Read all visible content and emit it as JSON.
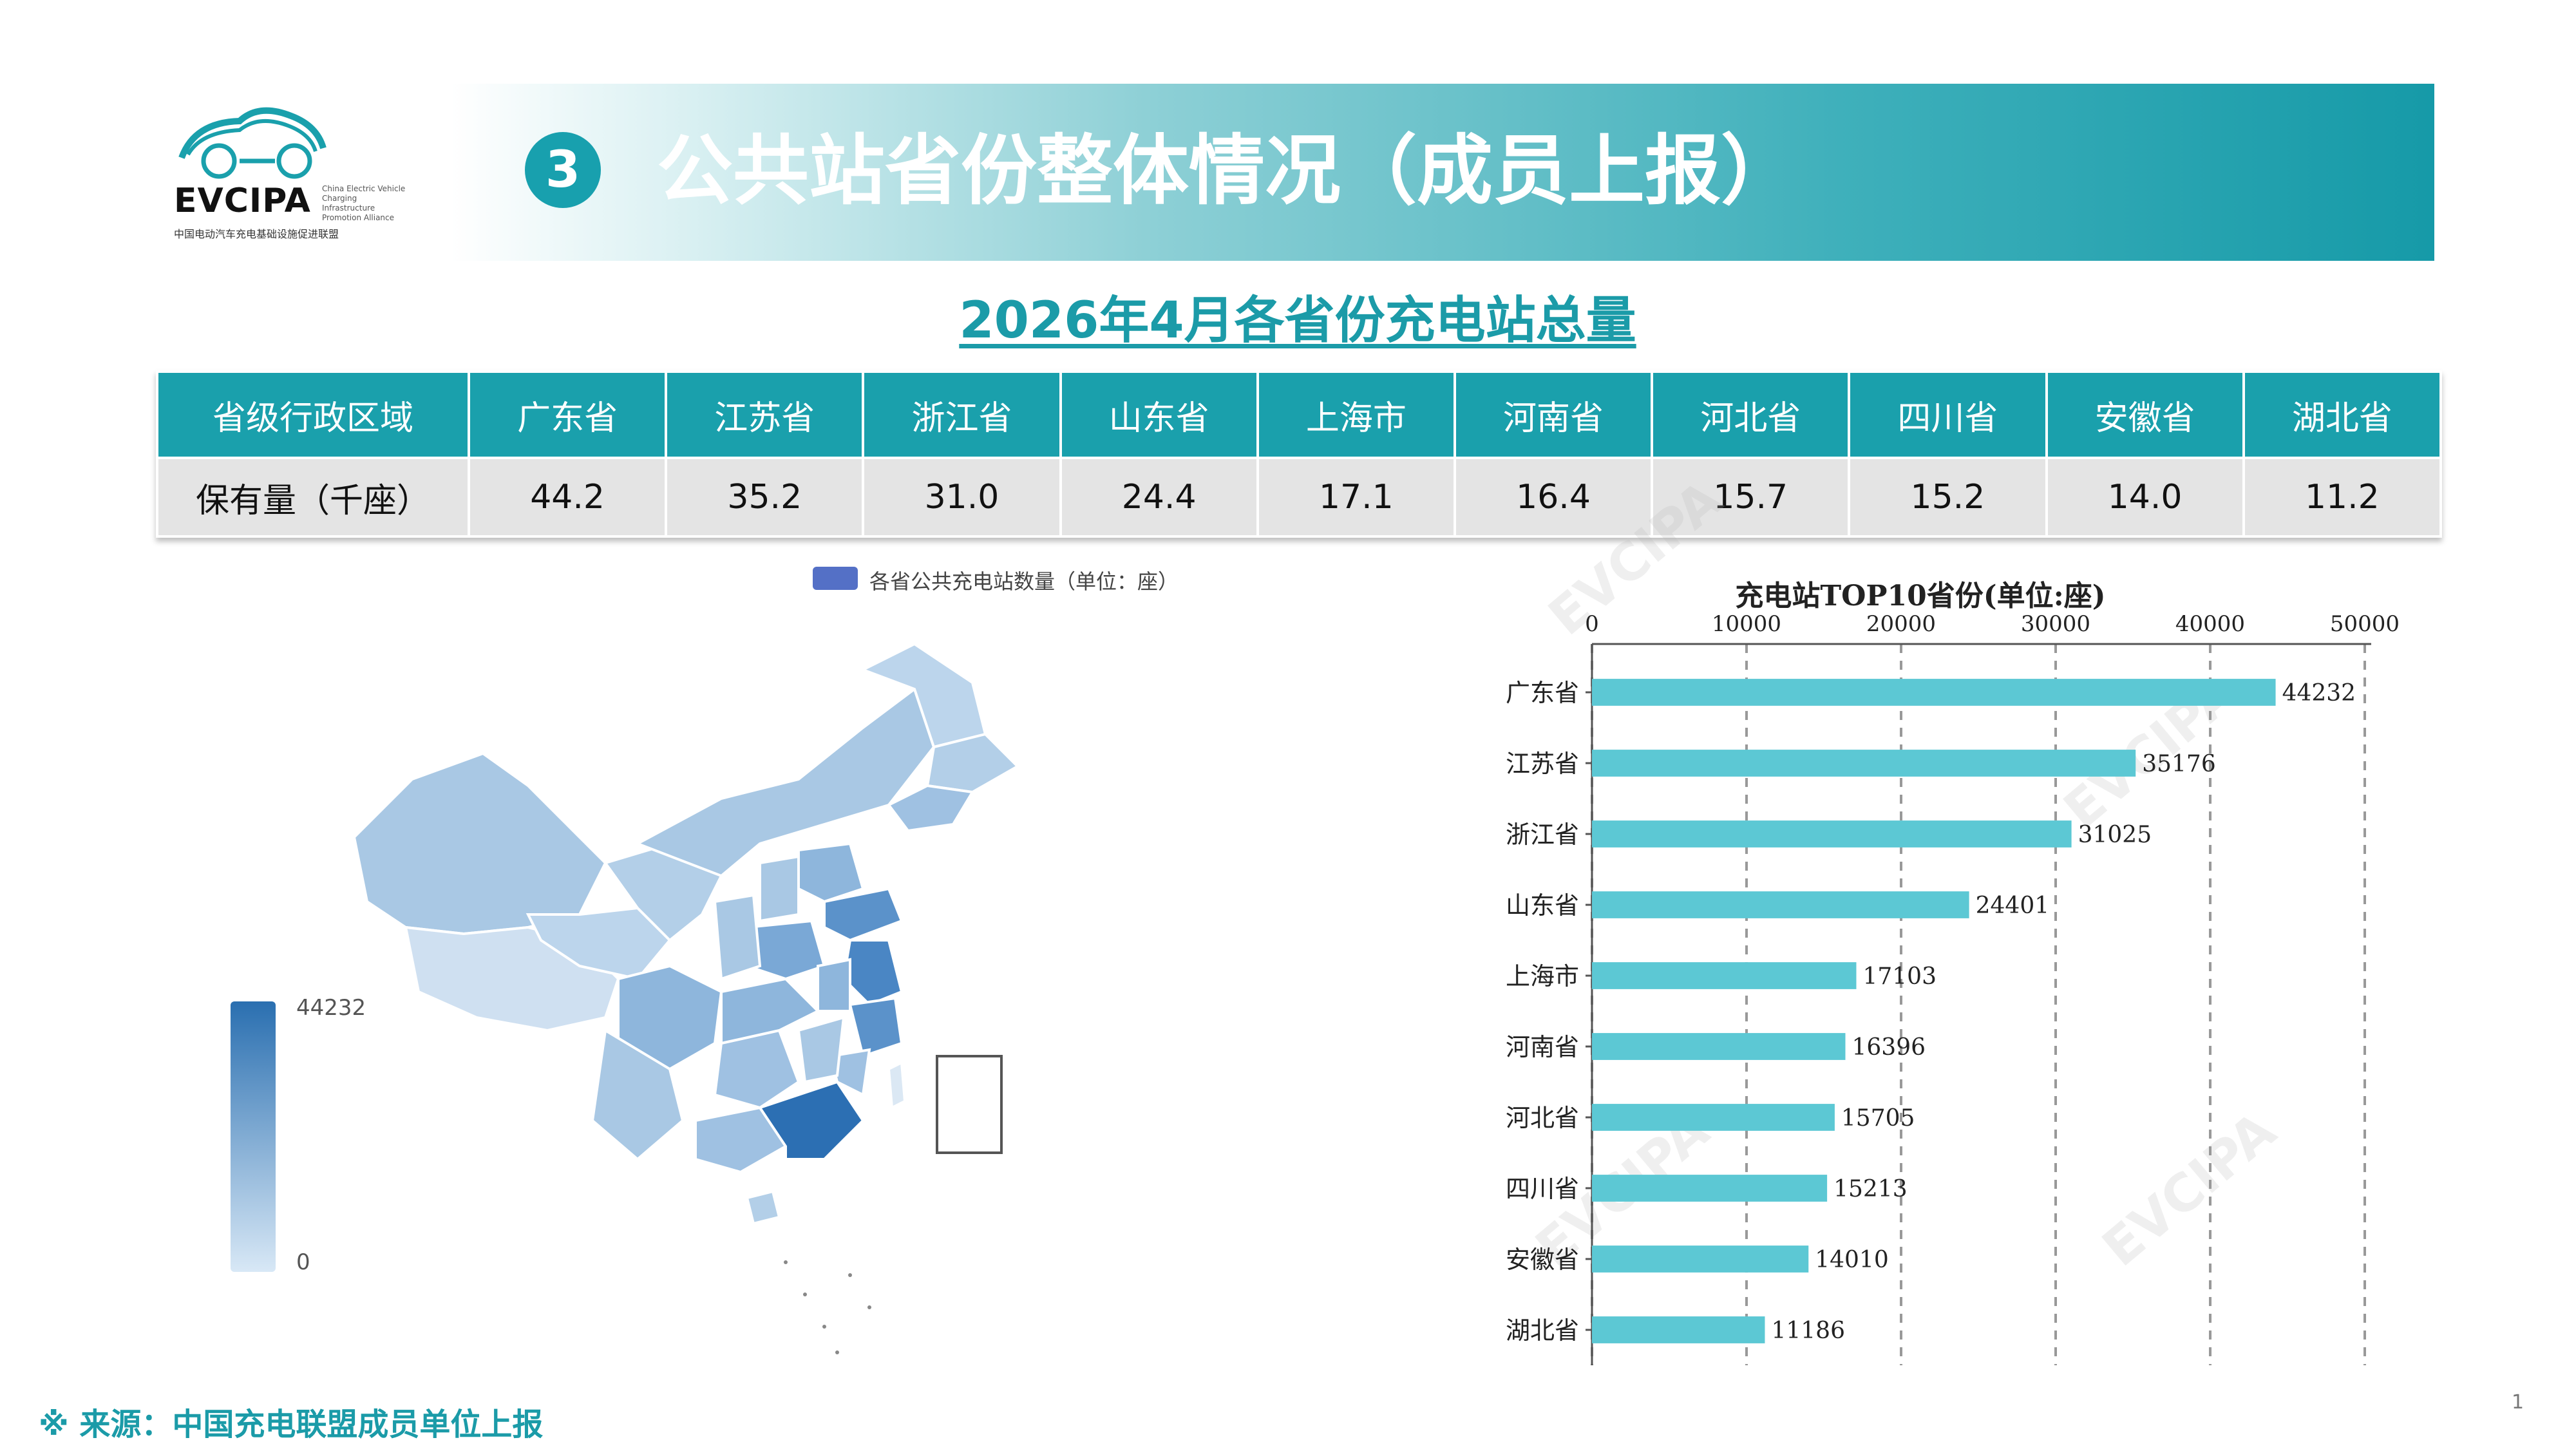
{
  "logo": {
    "name": "EVCIPA",
    "sub": "中国电动汽车充电基础设施促进联盟",
    "en": "China Electric Vehicle Charging Infrastructure Promotion Alliance"
  },
  "banner": {
    "number": "3",
    "title": "公共站省份整体情况（成员上报）"
  },
  "subtitle": "2026年4月各省份充电站总量",
  "table": {
    "row1_header": "省级行政区域",
    "row2_header": "保有量（千座）",
    "provinces": [
      "广东省",
      "江苏省",
      "浙江省",
      "山东省",
      "上海市",
      "河南省",
      "河北省",
      "四川省",
      "安徽省",
      "湖北省"
    ],
    "values": [
      "44.2",
      "35.2",
      "31.0",
      "24.4",
      "17.1",
      "16.4",
      "15.7",
      "15.2",
      "14.0",
      "11.2"
    ]
  },
  "map": {
    "legend_label": "各省公共充电站数量（单位：座）",
    "legend_color": "#5470c6",
    "visualmap_max": "44232",
    "visualmap_min": "0"
  },
  "chart_data": {
    "type": "bar",
    "orientation": "horizontal",
    "title": "充电站TOP10省份(单位:座)",
    "categories": [
      "广东省",
      "江苏省",
      "浙江省",
      "山东省",
      "上海市",
      "河南省",
      "河北省",
      "四川省",
      "安徽省",
      "湖北省"
    ],
    "values": [
      44232,
      35176,
      31025,
      24401,
      17103,
      16396,
      15705,
      15213,
      14010,
      11186
    ],
    "xlim": [
      0,
      50000
    ],
    "xticks": [
      "0",
      "10000",
      "20000",
      "30000",
      "40000",
      "50000"
    ],
    "bar_color": "#5cc8d4",
    "grid": "dashed vertical"
  },
  "watermark": "EVCIPA",
  "source": "※ 来源：中国充电联盟成员单位上报",
  "page_number": "1"
}
